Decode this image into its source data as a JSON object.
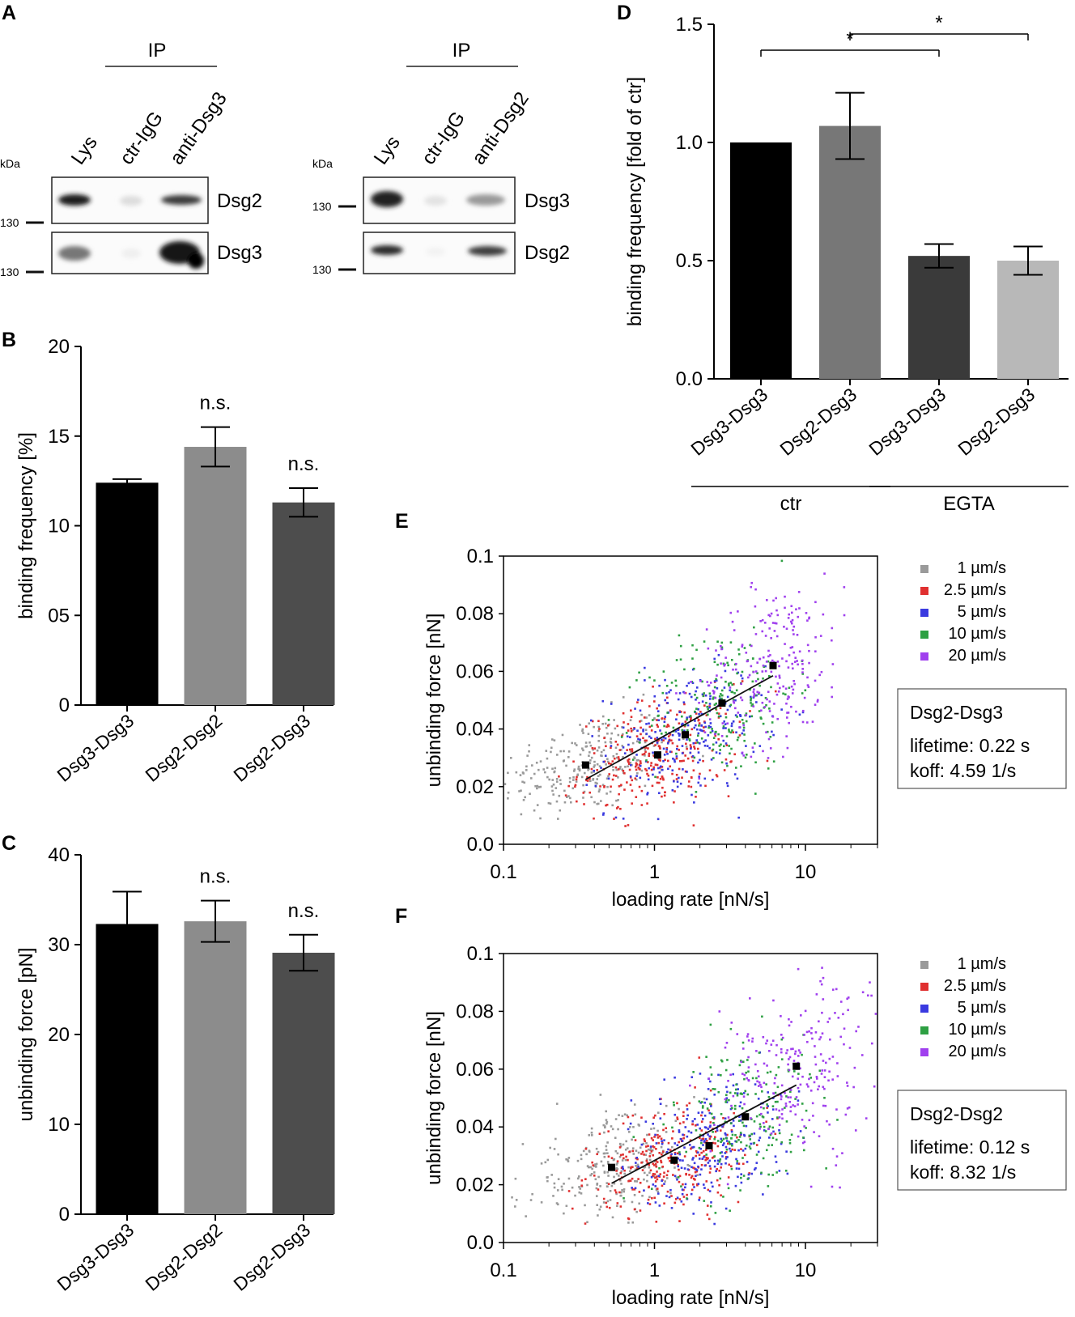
{
  "panel_labels": {
    "A": "A",
    "B": "B",
    "C": "C",
    "D": "D",
    "E": "E",
    "F": "F"
  },
  "blots": {
    "left": {
      "ip": "IP",
      "kda": "kDa",
      "marker": "130",
      "lanes": [
        "Lys",
        "ctr-IgG",
        "anti-Dsg3"
      ],
      "rows": [
        "Dsg2",
        "Dsg3"
      ]
    },
    "right": {
      "ip": "IP",
      "kda": "kDa",
      "marker": "130",
      "lanes": [
        "Lys",
        "ctr-IgG",
        "anti-Dsg2"
      ],
      "rows": [
        "Dsg3",
        "Dsg2"
      ]
    }
  },
  "chart_data": [
    {
      "id": "B",
      "type": "bar",
      "ylabel": "binding frequency [%]",
      "ylim": [
        0,
        20
      ],
      "yticks": [
        0,
        5,
        10,
        15,
        20
      ],
      "ytick_labels": [
        "0",
        "05",
        "10",
        "15",
        "20"
      ],
      "categories": [
        "Dsg3-Dsg3",
        "Dsg2-Dsg2",
        "Dsg2-Dsg3"
      ],
      "values": [
        12.4,
        14.4,
        11.3
      ],
      "errors": [
        0.2,
        1.1,
        0.8
      ],
      "colors": [
        "#000000",
        "#8c8c8c",
        "#4d4d4d"
      ],
      "annotations": [
        "",
        "n.s.",
        "n.s."
      ]
    },
    {
      "id": "C",
      "type": "bar",
      "ylabel": "unbinding force [pN]",
      "ylim": [
        0,
        40
      ],
      "yticks": [
        0,
        10,
        20,
        30,
        40
      ],
      "ytick_labels": [
        "0",
        "10",
        "20",
        "30",
        "40"
      ],
      "categories": [
        "Dsg3-Dsg3",
        "Dsg2-Dsg2",
        "Dsg2-Dsg3"
      ],
      "values": [
        32.3,
        32.6,
        29.1
      ],
      "errors": [
        3.6,
        2.3,
        2.0
      ],
      "colors": [
        "#000000",
        "#8c8c8c",
        "#4d4d4d"
      ],
      "annotations": [
        "",
        "n.s.",
        "n.s."
      ]
    },
    {
      "id": "D",
      "type": "bar",
      "ylabel": "binding frequency [fold of ctr]",
      "ylim": [
        0,
        1.5
      ],
      "yticks": [
        0,
        0.5,
        1.0,
        1.5
      ],
      "ytick_labels": [
        "0.0",
        "0.5",
        "1.0",
        "1.5"
      ],
      "categories": [
        "Dsg3-Dsg3",
        "Dsg2-Dsg3",
        "Dsg3-Dsg3",
        "Dsg2-Dsg3"
      ],
      "values": [
        1.0,
        1.07,
        0.52,
        0.5
      ],
      "errors": [
        0,
        0.14,
        0.05,
        0.06
      ],
      "colors": [
        "#000000",
        "#777777",
        "#3a3a3a",
        "#b8b8b8"
      ],
      "groups": [
        {
          "label": "ctr",
          "members": [
            0,
            1
          ]
        },
        {
          "label": "EGTA",
          "members": [
            2,
            3
          ]
        }
      ],
      "significance": [
        {
          "from": 0,
          "to": 2,
          "label": "*"
        },
        {
          "from": 1,
          "to": 3,
          "label": "*"
        }
      ]
    },
    {
      "id": "E",
      "type": "scatter",
      "xlabel": "loading rate [nN/s]",
      "ylabel": "unbinding force [nN]",
      "xscale": "log",
      "xlim": [
        0.1,
        30
      ],
      "ylim": [
        0,
        0.1
      ],
      "xtick_labels": [
        "0.1",
        "1",
        "10"
      ],
      "ytick_labels": [
        "0.0",
        "0.02",
        "0.04",
        "0.06",
        "0.08",
        "0.1"
      ],
      "series": [
        {
          "name": "1 µm/s",
          "color": "#9a9a9a"
        },
        {
          "name": "2.5 µm/s",
          "color": "#e03030"
        },
        {
          "name": "5 µm/s",
          "color": "#3a3ae0"
        },
        {
          "name": "10 µm/s",
          "color": "#2ea043"
        },
        {
          "name": "20 µm/s",
          "color": "#a040ee"
        }
      ],
      "centroids": {
        "x": [
          0.35,
          1.05,
          1.6,
          2.8,
          6.1
        ],
        "y": [
          0.0275,
          0.031,
          0.038,
          0.049,
          0.062
        ]
      },
      "fit": {
        "x": [
          0.35,
          6.1
        ],
        "y": [
          0.0225,
          0.0585
        ]
      },
      "info": {
        "title": "Dsg2-Dsg3",
        "lifetime": "lifetime: 0.22 s",
        "koff": "koff: 4.59 1/s"
      }
    },
    {
      "id": "F",
      "type": "scatter",
      "xlabel": "loading rate [nN/s]",
      "ylabel": "unbinding force [nN]",
      "xscale": "log",
      "xlim": [
        0.1,
        30
      ],
      "ylim": [
        0,
        0.1
      ],
      "xtick_labels": [
        "0.1",
        "1",
        "10"
      ],
      "ytick_labels": [
        "0.0",
        "0.02",
        "0.04",
        "0.06",
        "0.08",
        "0.1"
      ],
      "series": [
        {
          "name": "1 µm/s",
          "color": "#9a9a9a"
        },
        {
          "name": "2.5 µm/s",
          "color": "#e03030"
        },
        {
          "name": "5 µm/s",
          "color": "#3a3ae0"
        },
        {
          "name": "10 µm/s",
          "color": "#2ea043"
        },
        {
          "name": "20 µm/s",
          "color": "#a040ee"
        }
      ],
      "centroids": {
        "x": [
          0.52,
          1.35,
          2.3,
          4.0,
          8.7
        ],
        "y": [
          0.026,
          0.0285,
          0.0335,
          0.0435,
          0.061
        ]
      },
      "fit": {
        "x": [
          0.52,
          8.7
        ],
        "y": [
          0.0205,
          0.0545
        ]
      },
      "info": {
        "title": "Dsg2-Dsg2",
        "lifetime": "lifetime: 0.12 s",
        "koff": "koff: 8.32 1/s"
      }
    }
  ]
}
